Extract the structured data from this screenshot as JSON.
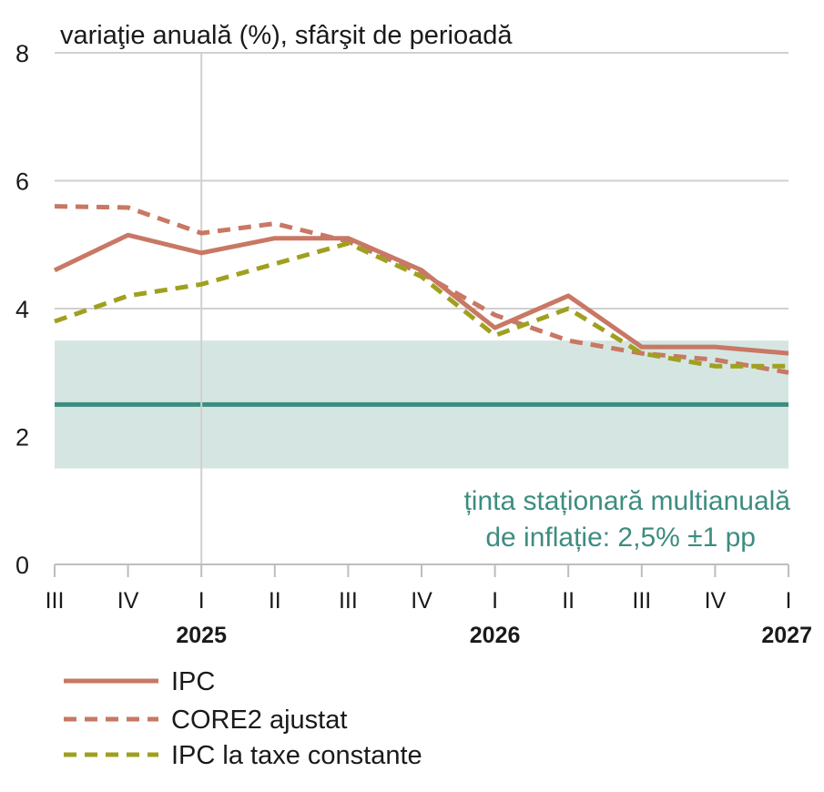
{
  "chart_data": {
    "type": "line",
    "ylabel": "variaţie anuală (%), sfârşit de perioadă",
    "ylim": [
      0,
      8
    ],
    "yticks": [
      "0",
      "2",
      "4",
      "6",
      "8"
    ],
    "x_quarters": [
      "III",
      "IV",
      "I",
      "II",
      "III",
      "IV",
      "I",
      "II",
      "III",
      "IV",
      "I"
    ],
    "x_years": [
      {
        "label": "2025",
        "quarter_index": 2
      },
      {
        "label": "2026",
        "quarter_index": 6
      },
      {
        "label": "2027",
        "quarter_index": 10
      }
    ],
    "grid": true,
    "series": [
      {
        "name": "IPC",
        "style": "solid",
        "color": "#c87864",
        "values": [
          4.6,
          5.15,
          4.87,
          5.1,
          5.1,
          4.6,
          3.7,
          4.2,
          3.4,
          3.4,
          3.3
        ]
      },
      {
        "name": "CORE2 ajustat",
        "style": "dashed",
        "color": "#c87864",
        "values": [
          5.6,
          5.58,
          5.18,
          5.33,
          5.05,
          4.55,
          3.9,
          3.5,
          3.3,
          3.2,
          3.0
        ]
      },
      {
        "name": "IPC la taxe constante",
        "style": "dashed",
        "color": "#a0a020",
        "values": [
          3.8,
          4.2,
          4.38,
          4.7,
          5.02,
          4.5,
          3.58,
          4.0,
          3.3,
          3.1,
          3.1
        ]
      }
    ],
    "target": {
      "value": 2.5,
      "band": [
        1.5,
        3.5
      ],
      "label_line1": "ținta staționară multianuală",
      "label_line2": "de inflație: 2,5% ±1 pp",
      "line_color": "#3e8c80",
      "band_color": "#d5e6e2"
    }
  }
}
